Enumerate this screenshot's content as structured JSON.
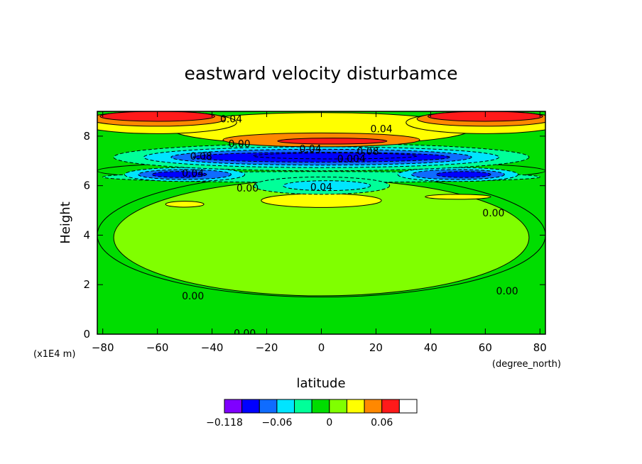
{
  "chart_data": {
    "type": "heatmap",
    "title": "eastward velocity disturbamce",
    "xlabel": "latitude",
    "ylabel": "Height",
    "x_unit": "(degree_north)",
    "y_unit": "(x1E4 m)",
    "xlim": [
      -82,
      82
    ],
    "ylim": [
      0,
      9
    ],
    "x_ticks": [
      -80,
      -60,
      -40,
      -20,
      0,
      20,
      40,
      60,
      80
    ],
    "y_ticks": [
      0,
      2,
      4,
      6,
      8
    ],
    "colorbar": {
      "colors": [
        "#7f00ff",
        "#0000ff",
        "#0f6cff",
        "#00e5ff",
        "#00ff99",
        "#00dd00",
        "#80ff00",
        "#ffff00",
        "#ff8800",
        "#ff1a1a",
        "#ffffff"
      ],
      "levels": [
        -0.118,
        -0.1,
        -0.08,
        -0.06,
        -0.04,
        -0.02,
        0,
        0.02,
        0.04,
        0.06,
        0.08
      ],
      "tick_labels": [
        {
          "value": -0.118,
          "label": "−0.118"
        },
        {
          "value": -0.06,
          "label": "−0.06"
        },
        {
          "value": 0,
          "label": "0"
        },
        {
          "value": 0.06,
          "label": "0.06"
        }
      ]
    },
    "contour_labels": [
      {
        "text": "0.04",
        "lat": -33,
        "h": 8.7
      },
      {
        "text": "0.04",
        "lat": 22,
        "h": 8.3
      },
      {
        "text": "0.00",
        "lat": -30,
        "h": 7.7
      },
      {
        "text": "0.04",
        "lat": -4,
        "h": 7.5
      },
      {
        "text": "0.08",
        "lat": 17,
        "h": 7.4
      },
      {
        "text": "0.08",
        "lat": -44,
        "h": 7.2
      },
      {
        "text": "0.004",
        "lat": 11,
        "h": 7.1
      },
      {
        "text": "0.04",
        "lat": -47,
        "h": 6.5
      },
      {
        "text": "0.00",
        "lat": -27,
        "h": 5.9
      },
      {
        "text": "0.04",
        "lat": 0,
        "h": 5.95
      },
      {
        "text": "0.00",
        "lat": 63,
        "h": 4.9
      },
      {
        "text": "0.00",
        "lat": -47,
        "h": 1.55
      },
      {
        "text": "0.00",
        "lat": 68,
        "h": 1.75
      },
      {
        "text": "0.00",
        "lat": -28,
        "h": 0.05
      }
    ],
    "field_regions": [
      {
        "level": -0.02,
        "lat": 0,
        "h": 4.0,
        "rlat": 82,
        "rh": 2.5
      },
      {
        "level": 0,
        "lat": 0,
        "h": 3.9,
        "rlat": 76,
        "rh": 2.35
      },
      {
        "level": -0.02,
        "lat": 0,
        "h": 6.6,
        "rlat": 82,
        "rh": 0.4
      },
      {
        "level": 0.02,
        "lat": -50,
        "h": 5.25,
        "rlat": 7,
        "rh": 0.12
      },
      {
        "level": 0.02,
        "lat": 0,
        "h": 5.4,
        "rlat": 22,
        "rh": 0.28
      },
      {
        "level": 0.02,
        "lat": 50,
        "h": 5.55,
        "rlat": 12,
        "rh": 0.1
      },
      {
        "level": -0.04,
        "lat": 0,
        "h": 6.35,
        "rlat": 80,
        "rh": 0.22
      },
      {
        "level": -0.06,
        "lat": -50,
        "h": 6.45,
        "rlat": 22,
        "rh": 0.28
      },
      {
        "level": -0.06,
        "lat": 50,
        "h": 6.45,
        "rlat": 22,
        "rh": 0.28
      },
      {
        "level": -0.08,
        "lat": -50,
        "h": 6.45,
        "rlat": 17,
        "rh": 0.2
      },
      {
        "level": -0.08,
        "lat": 50,
        "h": 6.45,
        "rlat": 17,
        "rh": 0.2
      },
      {
        "level": -0.1,
        "lat": -52,
        "h": 6.45,
        "rlat": 10,
        "rh": 0.12
      },
      {
        "level": -0.1,
        "lat": 52,
        "h": 6.45,
        "rlat": 10,
        "rh": 0.12
      },
      {
        "level": -0.04,
        "lat": 0,
        "h": 6.0,
        "rlat": 25,
        "rh": 0.35
      },
      {
        "level": -0.06,
        "lat": 2,
        "h": 6.0,
        "rlat": 16,
        "rh": 0.2
      },
      {
        "level": -0.04,
        "lat": 0,
        "h": 7.15,
        "rlat": 76,
        "rh": 0.55
      },
      {
        "level": -0.06,
        "lat": 0,
        "h": 7.15,
        "rlat": 65,
        "rh": 0.42
      },
      {
        "level": -0.08,
        "lat": 0,
        "h": 7.15,
        "rlat": 55,
        "rh": 0.32
      },
      {
        "level": -0.1,
        "lat": 0,
        "h": 7.15,
        "rlat": 47,
        "rh": 0.2
      },
      {
        "level": -0.1,
        "lat": 5,
        "h": 7.2,
        "rlat": 30,
        "rh": 0.12
      },
      {
        "level": 0.02,
        "lat": 0,
        "h": 8.3,
        "rlat": 55,
        "rh": 0.65
      },
      {
        "level": 0.04,
        "lat": 0,
        "h": 7.85,
        "rlat": 36,
        "rh": 0.28
      },
      {
        "level": 0.06,
        "lat": 4,
        "h": 7.8,
        "rlat": 20,
        "rh": 0.12
      },
      {
        "level": 0.02,
        "lat": -60,
        "h": 8.55,
        "rlat": 29,
        "rh": 0.45
      },
      {
        "level": 0.02,
        "lat": 60,
        "h": 8.55,
        "rlat": 29,
        "rh": 0.45
      },
      {
        "level": 0.04,
        "lat": -60,
        "h": 8.7,
        "rlat": 25,
        "rh": 0.3
      },
      {
        "level": 0.04,
        "lat": 60,
        "h": 8.7,
        "rlat": 25,
        "rh": 0.3
      },
      {
        "level": 0.06,
        "lat": -60,
        "h": 8.8,
        "rlat": 21,
        "rh": 0.2
      },
      {
        "level": 0.06,
        "lat": 60,
        "h": 8.8,
        "rlat": 21,
        "rh": 0.2
      }
    ]
  }
}
